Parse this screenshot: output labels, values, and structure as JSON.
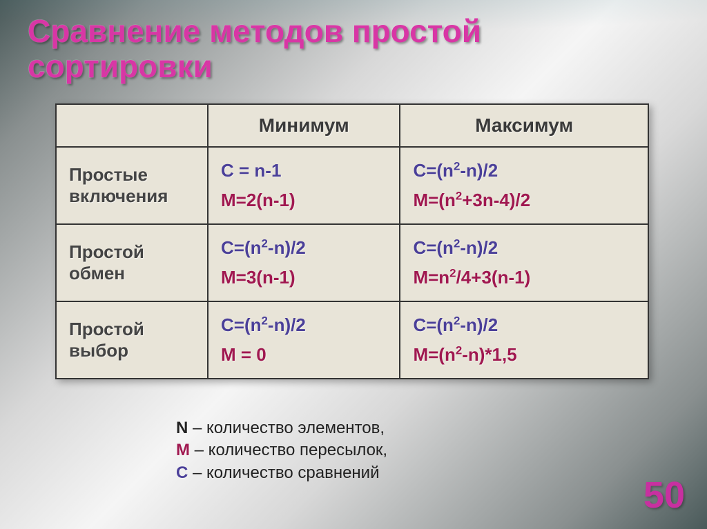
{
  "title_line1": "Сравнение методов простой",
  "title_line2": "сортировки",
  "columns": {
    "min": "Минимум",
    "max": "Максимум"
  },
  "rows": [
    {
      "label_line1": "Простые",
      "label_line2": "включения",
      "min": {
        "c": "C = n-1",
        "m": "M=2(n-1)"
      },
      "max": {
        "c": "C=(n²-n)/2",
        "m": "M=(n²+3n-4)/2"
      }
    },
    {
      "label_line1": "Простой",
      "label_line2": "обмен",
      "min": {
        "c": "C=(n²-n)/2",
        "m": "M=3(n-1)"
      },
      "max": {
        "c": "C=(n²-n)/2",
        "m": "M=n²/4+3(n-1)"
      }
    },
    {
      "label_line1": "Простой",
      "label_line2": "выбор",
      "min": {
        "c": "C=(n²-n)/2",
        "m": "M = 0"
      },
      "max": {
        "c": "C=(n²-n)/2",
        "m": "M=(n²-n)*1,5"
      }
    }
  ],
  "legend": {
    "n": "N",
    "n_text": " – количество элементов,",
    "m": "M",
    "m_text": " – количество пересылок,",
    "c": "C",
    "c_text": " – количество сравнений"
  },
  "page_number": "50",
  "colors": {
    "title": "#d836a5",
    "c_formula": "#4a3f99",
    "m_formula": "#a01850",
    "table_bg": "#e8e4d8",
    "border": "#333333",
    "pagenum": "#c830a0"
  },
  "fontsizes": {
    "title": 46,
    "header": 28,
    "rowhead": 26,
    "cell": 26,
    "legend": 24,
    "pagenum": 54
  }
}
